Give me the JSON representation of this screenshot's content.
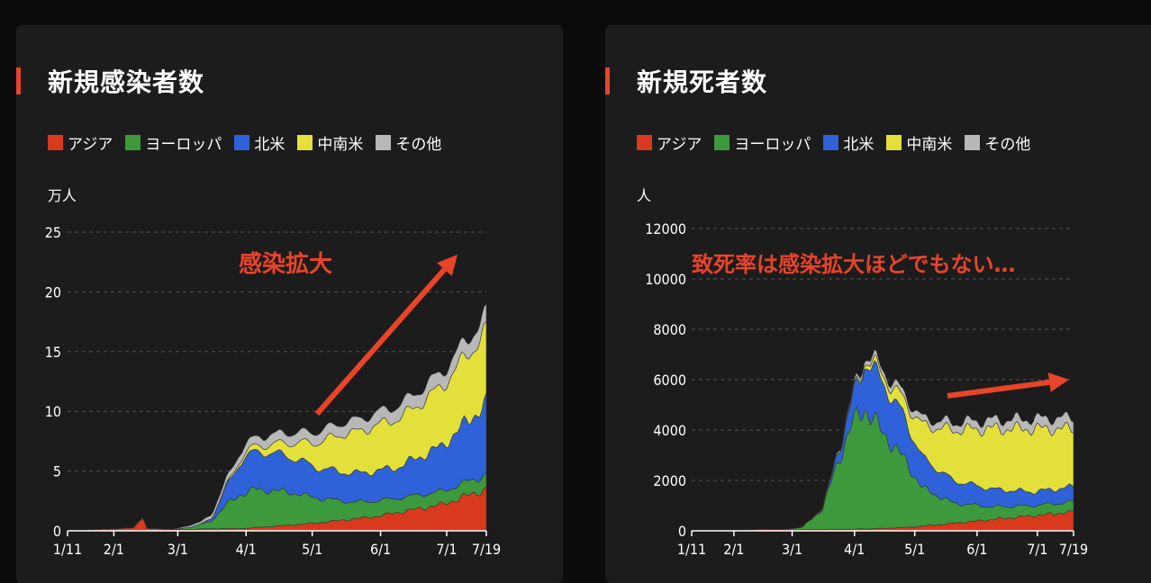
{
  "legend_colors": {
    "asia": "#d9391d",
    "europe": "#3c9a3c",
    "north_america": "#2f62d8",
    "latin_america": "#e3e03b",
    "other": "#b8b8b8"
  },
  "legend_labels": [
    "アジア",
    "ヨーロッパ",
    "北米",
    "中南米",
    "その他"
  ],
  "chart_data": [
    {
      "type": "area",
      "title": "新規感染者数",
      "ylabel": "万人",
      "ylim": [
        0,
        25
      ],
      "yticks": [
        0,
        5,
        10,
        15,
        20,
        25
      ],
      "xticks": [
        "1/11",
        "2/1",
        "3/1",
        "4/1",
        "5/1",
        "6/1",
        "7/1",
        "7/19"
      ],
      "x_range": [
        "1/11",
        "7/19"
      ],
      "annotation": "感染拡大",
      "series_keypoints": {
        "asia": [
          [
            0,
            0
          ],
          [
            20,
            0.15
          ],
          [
            30,
            0.25
          ],
          [
            34,
            1.2
          ],
          [
            36,
            0.2
          ],
          [
            50,
            0.1
          ],
          [
            60,
            0.15
          ],
          [
            80,
            0.2
          ],
          [
            110,
            0.6
          ],
          [
            140,
            1.2
          ],
          [
            170,
            2.2
          ],
          [
            190,
            3.5
          ],
          [
            200,
            4.2
          ],
          [
            205,
            4.6
          ]
        ],
        "europe": [
          [
            0,
            0
          ],
          [
            48,
            0
          ],
          [
            56,
            0.2
          ],
          [
            65,
            0.6
          ],
          [
            72,
            2.0
          ],
          [
            78,
            2.8
          ],
          [
            85,
            3.2
          ],
          [
            100,
            2.8
          ],
          [
            115,
            2.0
          ],
          [
            130,
            1.4
          ],
          [
            150,
            1.2
          ],
          [
            170,
            1.1
          ],
          [
            190,
            1.2
          ],
          [
            205,
            1.6
          ]
        ],
        "north_america": [
          [
            0,
            0
          ],
          [
            60,
            0
          ],
          [
            66,
            0.3
          ],
          [
            72,
            1.5
          ],
          [
            80,
            3.0
          ],
          [
            90,
            3.2
          ],
          [
            100,
            3.0
          ],
          [
            115,
            2.5
          ],
          [
            130,
            2.4
          ],
          [
            150,
            2.6
          ],
          [
            170,
            3.8
          ],
          [
            190,
            6.0
          ],
          [
            205,
            7.5
          ]
        ],
        "latin_america": [
          [
            0,
            0
          ],
          [
            65,
            0
          ],
          [
            72,
            0.1
          ],
          [
            80,
            0.3
          ],
          [
            95,
            0.8
          ],
          [
            110,
            1.8
          ],
          [
            125,
            3.2
          ],
          [
            140,
            3.8
          ],
          [
            155,
            4.2
          ],
          [
            170,
            5.0
          ],
          [
            190,
            6.0
          ],
          [
            205,
            7.0
          ]
        ],
        "other": [
          [
            0,
            0
          ],
          [
            45,
            0
          ],
          [
            60,
            0.2
          ],
          [
            75,
            0.6
          ],
          [
            90,
            0.8
          ],
          [
            110,
            0.9
          ],
          [
            130,
            1.0
          ],
          [
            150,
            1.1
          ],
          [
            170,
            1.2
          ],
          [
            190,
            1.4
          ],
          [
            205,
            1.7
          ]
        ]
      }
    },
    {
      "type": "area",
      "title": "新規死者数",
      "ylabel": "人",
      "ylim": [
        0,
        12000
      ],
      "yticks": [
        0,
        2000,
        4000,
        6000,
        8000,
        10000,
        12000
      ],
      "xticks": [
        "1/11",
        "2/1",
        "3/1",
        "4/1",
        "5/1",
        "6/1",
        "7/1",
        "7/19"
      ],
      "x_range": [
        "1/11",
        "7/19"
      ],
      "annotation": "致死率は感染拡大ほどでもない…",
      "series_keypoints": {
        "asia": [
          [
            0,
            0
          ],
          [
            20,
            5
          ],
          [
            30,
            40
          ],
          [
            36,
            60
          ],
          [
            50,
            40
          ],
          [
            70,
            60
          ],
          [
            90,
            80
          ],
          [
            110,
            150
          ],
          [
            130,
            300
          ],
          [
            150,
            450
          ],
          [
            170,
            600
          ],
          [
            190,
            750
          ],
          [
            205,
            850
          ]
        ],
        "europe": [
          [
            0,
            0
          ],
          [
            45,
            0
          ],
          [
            55,
            100
          ],
          [
            65,
            800
          ],
          [
            72,
            2500
          ],
          [
            80,
            4200
          ],
          [
            86,
            4800
          ],
          [
            95,
            3800
          ],
          [
            105,
            2800
          ],
          [
            115,
            1500
          ],
          [
            130,
            800
          ],
          [
            150,
            500
          ],
          [
            170,
            400
          ],
          [
            190,
            400
          ],
          [
            205,
            450
          ]
        ],
        "north_america": [
          [
            0,
            0
          ],
          [
            60,
            0
          ],
          [
            68,
            100
          ],
          [
            75,
            500
          ],
          [
            82,
            1200
          ],
          [
            88,
            2000
          ],
          [
            95,
            2000
          ],
          [
            105,
            1700
          ],
          [
            115,
            1200
          ],
          [
            130,
            900
          ],
          [
            150,
            700
          ],
          [
            170,
            550
          ],
          [
            190,
            600
          ],
          [
            205,
            700
          ]
        ],
        "latin_america": [
          [
            0,
            0
          ],
          [
            65,
            0
          ],
          [
            75,
            20
          ],
          [
            85,
            100
          ],
          [
            95,
            300
          ],
          [
            105,
            600
          ],
          [
            115,
            1300
          ],
          [
            130,
            2000
          ],
          [
            150,
            2400
          ],
          [
            170,
            2500
          ],
          [
            190,
            2300
          ],
          [
            205,
            2200
          ]
        ],
        "other": [
          [
            0,
            0
          ],
          [
            60,
            0
          ],
          [
            75,
            80
          ],
          [
            90,
            200
          ],
          [
            110,
            250
          ],
          [
            130,
            300
          ],
          [
            150,
            350
          ],
          [
            170,
            400
          ],
          [
            190,
            450
          ],
          [
            205,
            500
          ]
        ]
      }
    }
  ]
}
